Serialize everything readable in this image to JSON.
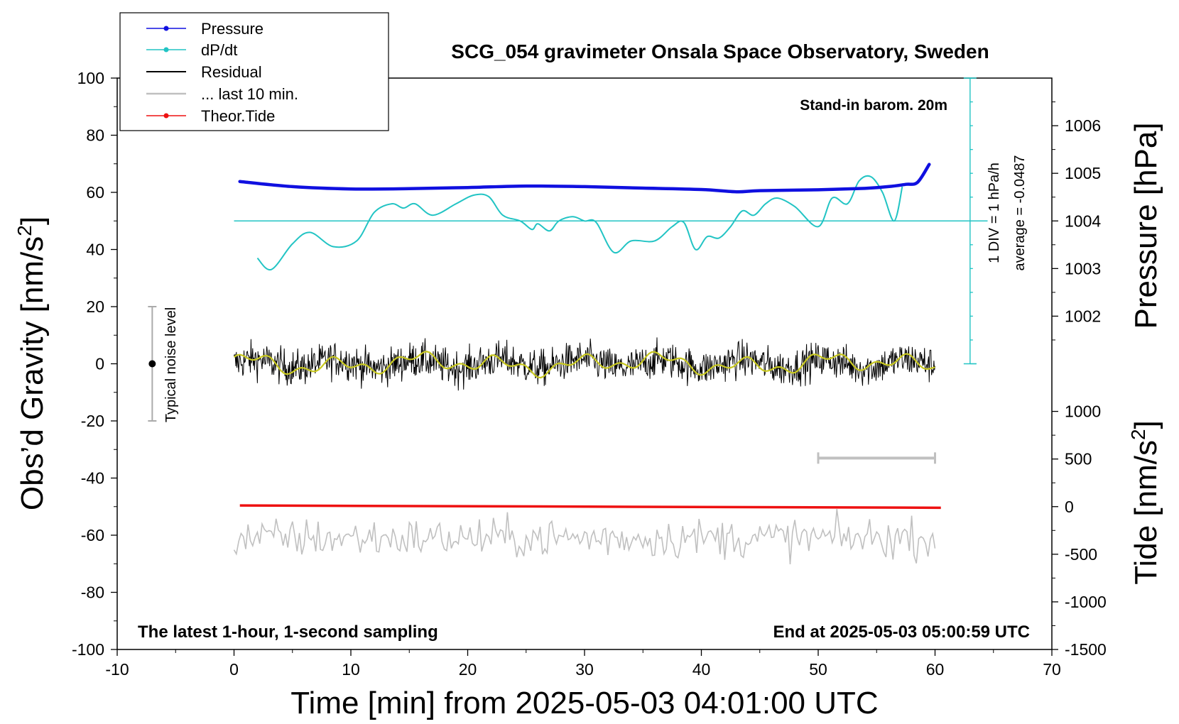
{
  "chart_data": {
    "type": "line",
    "title": "SCG_054 gravimeter Onsala Space Observatory, Sweden",
    "xlabel": "Time [min] from 2025-05-03 04:01:00 UTC",
    "ylabel_left_main": "Obs’d Gravity [nm/s",
    "ylabel_left_sup": "2",
    "ylabel_left_end": "]",
    "ylabel_right_top": "Pressure [hPa]",
    "ylabel_right_bottom_main": "Tide [nm/s",
    "ylabel_right_bottom_sup": "2",
    "ylabel_right_bottom_end": "]",
    "xlim": [
      -10,
      70
    ],
    "ylim": [
      -100,
      100
    ],
    "x_ticks": [
      "-10",
      "0",
      "10",
      "20",
      "30",
      "40",
      "50",
      "60",
      "70"
    ],
    "y_ticks": [
      "-100",
      "-80",
      "-60",
      "-40",
      "-20",
      "0",
      "20",
      "40",
      "60",
      "80",
      "100"
    ],
    "pressure_ticks": [
      "1002",
      "1003",
      "1004",
      "1005",
      "1006"
    ],
    "tide_ticks": [
      "-1500",
      "-1000",
      "-500",
      "0",
      "500",
      "1000"
    ],
    "annotations": {
      "barometer": "Stand-in barom. 20m",
      "div_label": "1 DIV = 1 hPa/h",
      "average_label": "average = -0.0487",
      "noise_label": "Typical noise level",
      "bottom_left": "The latest 1-hour, 1-second sampling",
      "bottom_right": "End at 2025-05-03 05:00:59 UTC"
    },
    "legend": {
      "position": "top-left",
      "entries": [
        "Pressure",
        "dP/dt",
        "Residual",
        "... last 10 min.",
        "Theor.Tide"
      ]
    },
    "colors": {
      "pressure": "#1010e0",
      "dpdt": "#22c4c4",
      "residual": "#000000",
      "residual_smooth": "#c8c820",
      "last10": "#c0c0c0",
      "tide": "#ee1111"
    },
    "series": [
      {
        "name": "Pressure",
        "x": [
          0.5,
          5,
          10,
          15,
          20,
          25,
          30,
          35,
          40,
          43,
          45,
          50,
          54,
          56,
          57.5,
          58.5,
          59.5
        ],
        "values": [
          63.8,
          62.0,
          61.2,
          61.3,
          61.7,
          62.2,
          62.0,
          61.5,
          61.0,
          60.2,
          60.6,
          60.9,
          61.4,
          62.0,
          62.8,
          63.5,
          69.8
        ]
      },
      {
        "name": "dP/dt",
        "x": [
          2,
          3.2,
          5,
          6.5,
          8.5,
          10.5,
          12,
          13.5,
          14.5,
          15.5,
          17,
          19,
          20.5,
          21.8,
          23,
          24.5,
          25.5,
          26,
          27,
          27.8,
          29,
          30,
          31,
          32.5,
          34,
          36,
          37.5,
          38.5,
          39.5,
          40.5,
          41.5,
          42.5,
          43.5,
          44.5,
          45.5,
          46.5,
          48,
          50,
          51.2,
          52.5,
          53.5,
          54.5,
          55.5,
          56.5,
          57.2
        ],
        "values": [
          37,
          33,
          42,
          46,
          41,
          43,
          53,
          56,
          54.5,
          56,
          52,
          56,
          59,
          58.5,
          52,
          50,
          47,
          49,
          46.5,
          50,
          51.5,
          50,
          49.5,
          39,
          43,
          43,
          48,
          49.5,
          40,
          44.5,
          44,
          48,
          53.5,
          52,
          56,
          58,
          55,
          48,
          58,
          56,
          64,
          65.5,
          60,
          50,
          62
        ]
      },
      {
        "name": "Residual",
        "x_range": [
          0,
          60
        ],
        "center": 0,
        "amplitude": 6
      },
      {
        "name": "... last 10 min.",
        "x_range": [
          0,
          60
        ],
        "center": -61,
        "amplitude": 5
      },
      {
        "name": "Theor.Tide",
        "x": [
          0.5,
          60.5
        ],
        "values": [
          -49.6,
          -50.4
        ]
      }
    ],
    "grid": false
  }
}
